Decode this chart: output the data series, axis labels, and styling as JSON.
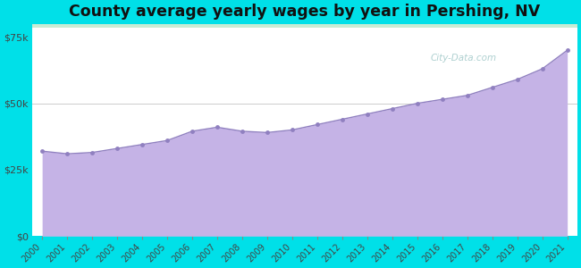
{
  "title": "County average yearly wages by year in Pershing, NV",
  "years": [
    2000,
    2001,
    2002,
    2003,
    2004,
    2005,
    2006,
    2007,
    2008,
    2009,
    2010,
    2011,
    2012,
    2013,
    2014,
    2015,
    2016,
    2017,
    2018,
    2019,
    2020,
    2021
  ],
  "wages": [
    32000,
    31000,
    31500,
    33000,
    34500,
    36000,
    39500,
    41000,
    39500,
    39000,
    40000,
    42000,
    44000,
    46000,
    48000,
    50000,
    51500,
    53000,
    56000,
    59000,
    63000,
    70000
  ],
  "fill_color": "#c5b3e6",
  "marker_color": "#9080c0",
  "marker_size": 3.5,
  "background_outer": "#00e0e8",
  "background_plot_gradient_top": "#d8f0e0",
  "background_plot_gradient_bottom": "#ffffff",
  "grid_color": "#cccccc",
  "ylim": [
    0,
    80000
  ],
  "yticks": [
    0,
    25000,
    50000,
    75000
  ],
  "ytick_labels": [
    "$0",
    "$25k",
    "$50k",
    "$75k"
  ],
  "title_fontsize": 12.5,
  "watermark": "City-Data.com"
}
